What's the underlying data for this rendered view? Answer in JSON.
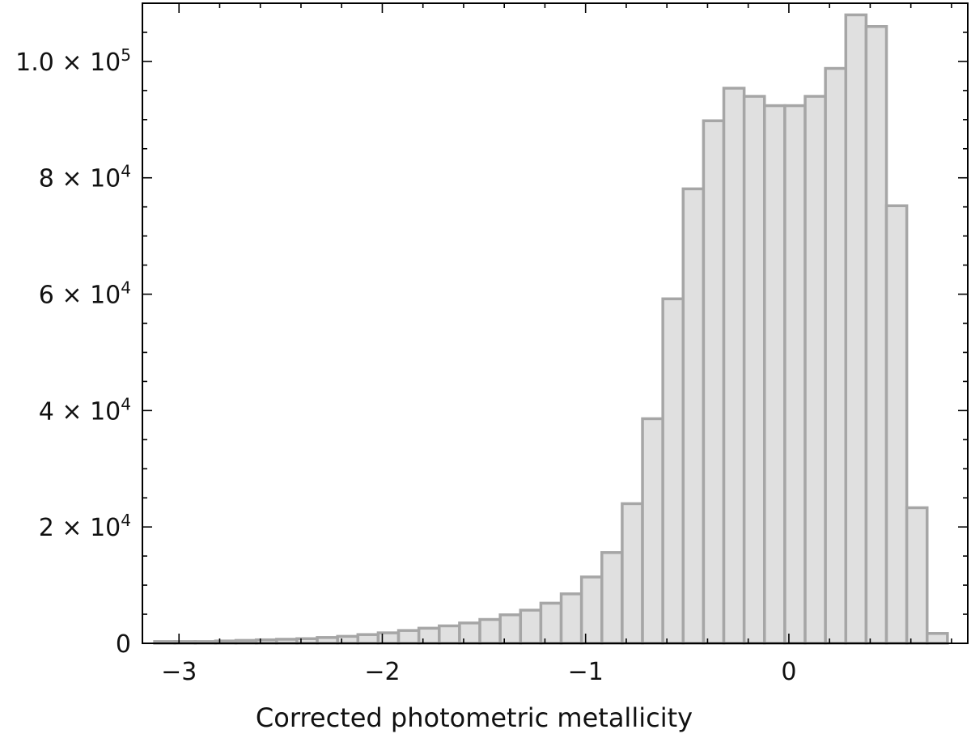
{
  "chart_data": {
    "type": "bar",
    "subtype": "histogram",
    "title": "",
    "xlabel": "Corrected photometric metallicity",
    "ylabel": "",
    "xlim": [
      -3.18,
      0.88
    ],
    "ylim": [
      0,
      110000
    ],
    "grid": false,
    "legend": "none",
    "colors": {
      "bar_fill": "#e0e0e0",
      "bar_edge": "#a6a6a6",
      "axis": "#000000"
    },
    "x_ticks": [
      {
        "value": -3,
        "label": "−3"
      },
      {
        "value": -2,
        "label": "−2"
      },
      {
        "value": -1,
        "label": "−1"
      },
      {
        "value": 0,
        "label": "0"
      }
    ],
    "y_ticks": [
      {
        "value": 0,
        "mantissa": "0",
        "exponent": ""
      },
      {
        "value": 20000,
        "mantissa": "2 × 10",
        "exponent": "4"
      },
      {
        "value": 40000,
        "mantissa": "4 × 10",
        "exponent": "4"
      },
      {
        "value": 60000,
        "mantissa": "6 × 10",
        "exponent": "4"
      },
      {
        "value": 80000,
        "mantissa": "8 × 10",
        "exponent": "4"
      },
      {
        "value": 100000,
        "mantissa": "1.0 × 10",
        "exponent": "5"
      }
    ],
    "bin_edges": [
      -3.12,
      -3.02,
      -2.92,
      -2.82,
      -2.72,
      -2.62,
      -2.52,
      -2.42,
      -2.32,
      -2.22,
      -2.12,
      -2.02,
      -1.92,
      -1.82,
      -1.72,
      -1.62,
      -1.52,
      -1.42,
      -1.32,
      -1.22,
      -1.12,
      -1.02,
      -0.92,
      -0.82,
      -0.72,
      -0.62,
      -0.52,
      -0.42,
      -0.32,
      -0.22,
      -0.12,
      -0.02,
      0.08,
      0.18,
      0.28,
      0.38,
      0.48,
      0.58,
      0.68,
      0.78
    ],
    "counts": [
      300,
      300,
      300,
      400,
      500,
      600,
      700,
      800,
      1000,
      1200,
      1500,
      1800,
      2200,
      2600,
      3000,
      3500,
      4100,
      4900,
      5700,
      6900,
      8500,
      11400,
      15600,
      24000,
      38600,
      59200,
      78100,
      89800,
      95400,
      94000,
      92400,
      92400,
      94000,
      98800,
      108000,
      106000,
      75200,
      23300,
      1700
    ]
  }
}
